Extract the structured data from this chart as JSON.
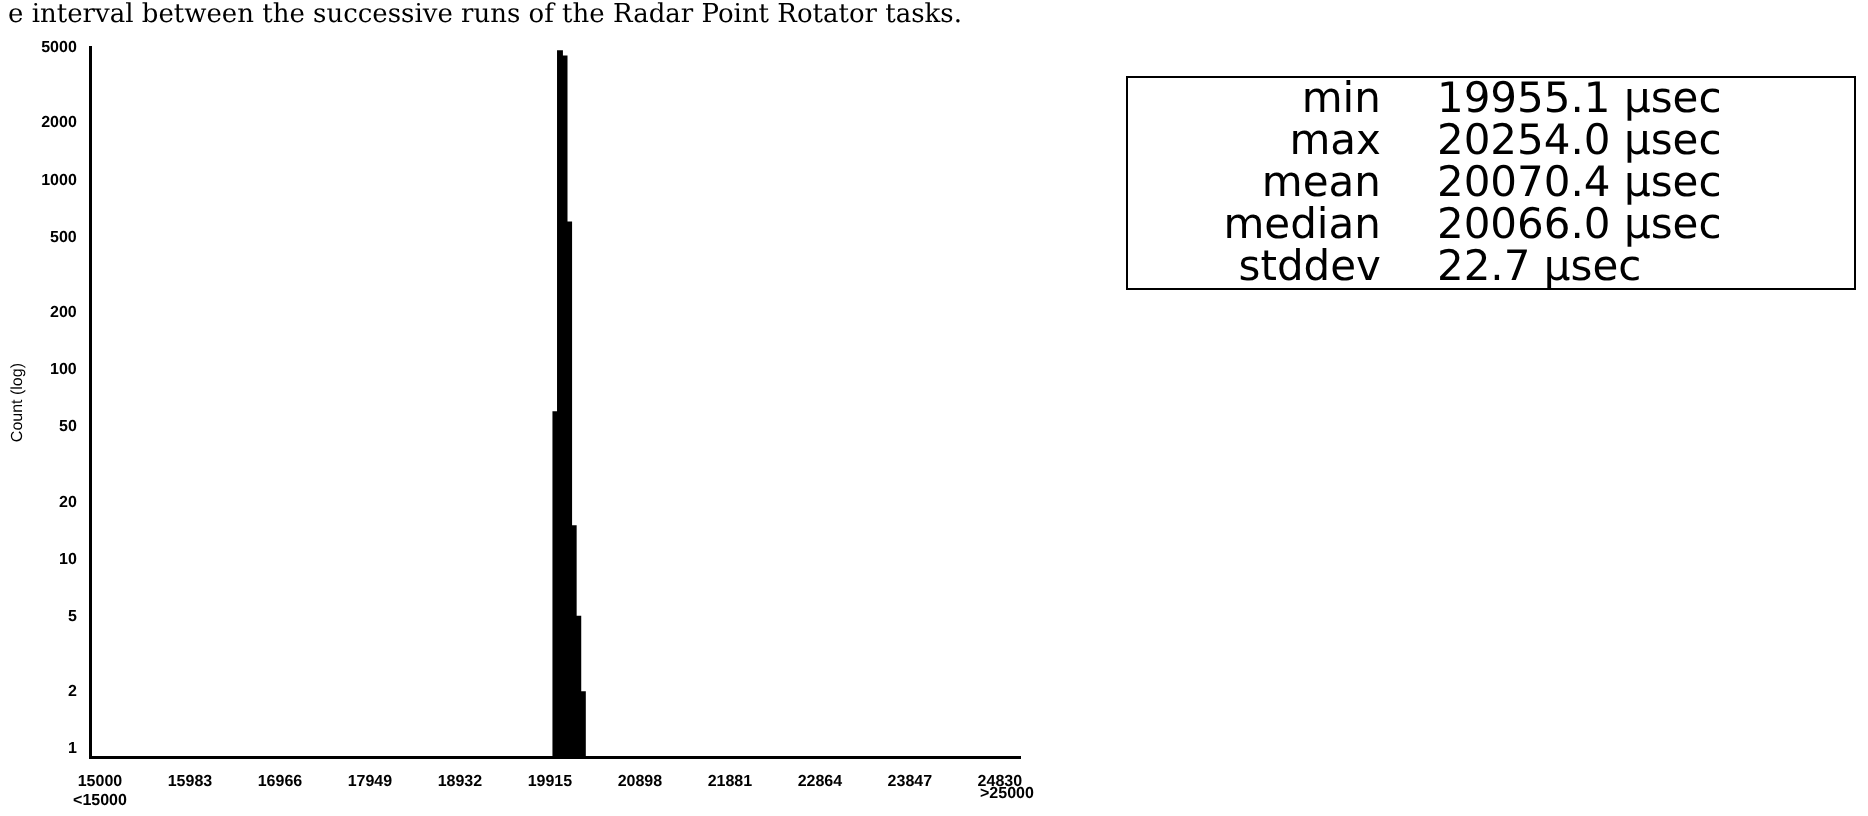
{
  "chart_data": [
    {
      "type": "histogram",
      "title": "e interval between the successive runs of the Radar Point Rotator tasks.",
      "ylabel": "Count (log)",
      "color": "#000000",
      "bins": [
        19950,
        20000,
        20050,
        20100,
        20150,
        20200,
        20250,
        20300
      ],
      "values": [
        60,
        4800,
        4500,
        600,
        15,
        5,
        2
      ],
      "log": "y",
      "ylim": [
        0.9,
        5000
      ],
      "yticks": [
        1,
        2,
        5,
        10,
        20,
        50,
        100,
        200,
        500,
        1000,
        2000,
        5000
      ],
      "xlim": [
        14900,
        25050
      ],
      "xticks": [
        {
          "value": 15000,
          "label": "15000\n<15000"
        },
        15983,
        16966,
        17949,
        18932,
        19915,
        20898,
        21881,
        22864,
        23847,
        24830
      ],
      "annotations": [
        ">25000"
      ],
      "grid": false,
      "legend": false
    },
    {
      "type": "other",
      "categories": [
        "min",
        "max",
        "mean",
        "median",
        "stddev"
      ],
      "value_labels": [
        "19955.1 μsec",
        "20254.0 μsec",
        "20070.4 μsec",
        "20066.0 μsec",
        "22.7 μsec"
      ]
    }
  ]
}
